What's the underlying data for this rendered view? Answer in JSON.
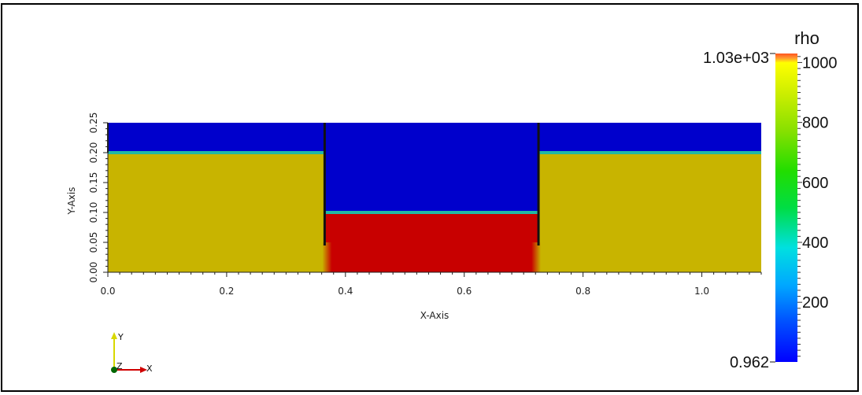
{
  "chart_data": {
    "type": "heatmap",
    "title": "",
    "xlabel": "X-Axis",
    "ylabel": "Y-Axis",
    "xlim": [
      0.0,
      1.1
    ],
    "ylim": [
      0.0,
      0.25
    ],
    "x_ticks": [
      "0.0",
      "0.2",
      "0.4",
      "0.6",
      "0.8",
      "1.0"
    ],
    "x_tick_values": [
      0.0,
      0.2,
      0.4,
      0.6,
      0.8,
      1.0
    ],
    "y_ticks": [
      "0.00",
      "0.05",
      "0.10",
      "0.15",
      "0.20",
      "0.25"
    ],
    "y_tick_values": [
      0.0,
      0.05,
      0.1,
      0.15,
      0.2,
      0.25
    ],
    "regions": [
      {
        "x": [
          0.0,
          0.365
        ],
        "y": [
          0.0,
          0.2
        ],
        "rho": 880
      },
      {
        "x": [
          0.0,
          0.365
        ],
        "y": [
          0.2,
          0.25
        ],
        "rho": 1
      },
      {
        "x": [
          0.365,
          0.725
        ],
        "y": [
          0.0,
          0.1
        ],
        "rho": 1030
      },
      {
        "x": [
          0.365,
          0.725
        ],
        "y": [
          0.1,
          0.25
        ],
        "rho": 1
      },
      {
        "x": [
          0.725,
          1.1
        ],
        "y": [
          0.0,
          0.2
        ],
        "rho": 880
      },
      {
        "x": [
          0.725,
          1.1
        ],
        "y": [
          0.2,
          0.25
        ],
        "rho": 1
      }
    ],
    "walls_x": [
      0.365,
      0.725
    ],
    "colorbar": {
      "title": "rho",
      "min_label": "0.962",
      "max_label": "1.03e+03",
      "tick_labels": [
        "200",
        "400",
        "600",
        "800",
        "1000"
      ],
      "tick_values": [
        200,
        400,
        600,
        800,
        1000
      ],
      "range": [
        0.962,
        1030
      ]
    },
    "orientation_axes": {
      "x": "X",
      "y": "Y",
      "z": "Z"
    },
    "colors": {
      "low": "#0000cc",
      "interface": "#21b8a5",
      "mid": "#c8b400",
      "high": "#c80000"
    }
  }
}
